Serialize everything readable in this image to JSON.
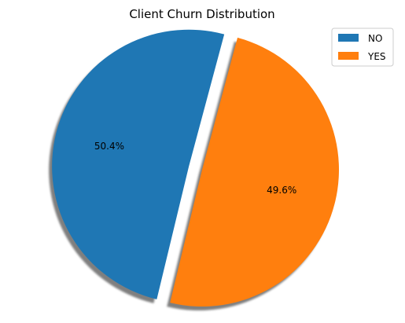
{
  "chart_data": {
    "type": "pie",
    "title": "Client Churn Distribution",
    "slices": [
      {
        "label": "NO",
        "value": 50.4,
        "pct_label": "50.4%",
        "color": "#1f77b4",
        "explode": 0.1
      },
      {
        "label": "YES",
        "value": 49.6,
        "pct_label": "49.6%",
        "color": "#ff7f0e",
        "explode": 0.0
      }
    ],
    "start_angle_deg": 75,
    "shadow": true,
    "legend": {
      "placement": "top-right",
      "entries": [
        "NO",
        "YES"
      ]
    }
  }
}
